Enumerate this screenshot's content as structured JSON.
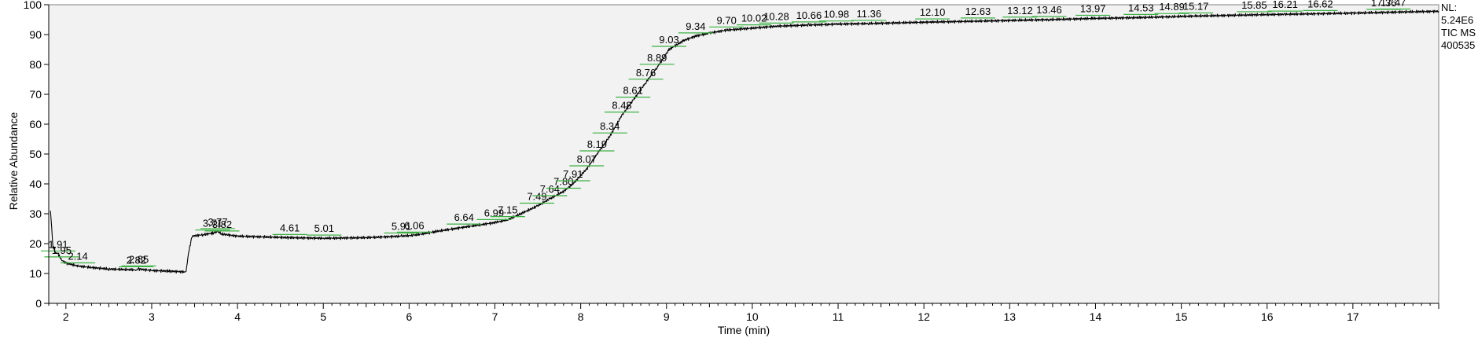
{
  "chart_data": {
    "type": "line",
    "title": "",
    "xlabel": "Time (min)",
    "ylabel": "Relative Abundance",
    "xlim": [
      1.8,
      18.0
    ],
    "ylim": [
      0,
      100
    ],
    "x_ticks": [
      2,
      3,
      4,
      5,
      6,
      7,
      8,
      9,
      10,
      11,
      12,
      13,
      14,
      15,
      16,
      17
    ],
    "x_tick_labels": [
      "2",
      "3",
      "4",
      "5",
      "6",
      "7",
      "8",
      "9",
      "10",
      "11",
      "12",
      "13",
      "14",
      "15",
      "16",
      "17"
    ],
    "y_ticks": [
      0,
      10,
      20,
      30,
      40,
      50,
      60,
      70,
      80,
      90,
      100
    ],
    "y_tick_labels": [
      "0",
      "10",
      "20",
      "30",
      "40",
      "50",
      "60",
      "70",
      "80",
      "90",
      "100"
    ],
    "grid": false,
    "side_labels": [
      "NL:",
      "5.24E6",
      "TIC  MS",
      "400535"
    ],
    "colors": {
      "plot_background": "#f2f2f2",
      "trace": "#000000",
      "peak_marker": "#3cb043"
    },
    "series": [
      {
        "x": [
          1.82,
          1.85,
          1.88,
          1.91,
          1.95,
          2.0,
          2.14,
          2.3,
          2.5,
          2.82,
          2.85,
          3.0,
          3.2,
          3.4,
          3.43,
          3.47,
          3.6,
          3.71,
          3.77,
          3.82,
          4.0,
          4.61,
          5.01,
          5.5,
          5.91,
          6.06,
          6.3,
          6.64,
          6.99,
          7.15,
          7.3,
          7.49,
          7.64,
          7.8,
          7.91,
          8.07,
          8.19,
          8.34,
          8.48,
          8.61,
          8.76,
          8.89,
          9.03,
          9.2,
          9.34,
          9.5,
          9.7,
          10.02,
          10.28,
          10.66,
          10.98,
          11.36,
          12.1,
          12.63,
          13.12,
          13.46,
          13.97,
          14.53,
          14.89,
          15.17,
          15.85,
          16.21,
          16.62,
          17.0,
          17.36,
          17.47,
          18.0
        ],
        "y": [
          31,
          19,
          17,
          16.5,
          14.5,
          13.5,
          12.5,
          12,
          11.5,
          11.2,
          11.5,
          11,
          10.8,
          10.5,
          17,
          22.5,
          23,
          23.5,
          24,
          23.2,
          22.5,
          22,
          21.8,
          22,
          22.5,
          22.8,
          24,
          25.5,
          27,
          28,
          30,
          32.5,
          35,
          37.5,
          40,
          45,
          50,
          56,
          63,
          68,
          74,
          79,
          85,
          88,
          89.5,
          90.5,
          91.5,
          92.2,
          92.8,
          93.2,
          93.5,
          93.7,
          94.2,
          94.5,
          94.8,
          95,
          95.4,
          95.7,
          96,
          96.2,
          96.6,
          96.8,
          97,
          97.2,
          97.4,
          97.5,
          97.8
        ]
      }
    ],
    "peak_labels": [
      {
        "x": 1.91,
        "y": 16.5,
        "label": "1.91"
      },
      {
        "x": 1.95,
        "y": 14.5,
        "label": "1.95"
      },
      {
        "x": 2.14,
        "y": 12.5,
        "label": "2.14"
      },
      {
        "x": 2.82,
        "y": 11.2,
        "label": "2.82"
      },
      {
        "x": 2.85,
        "y": 11.5,
        "label": "2.85"
      },
      {
        "x": 3.71,
        "y": 23.5,
        "label": "3.71"
      },
      {
        "x": 3.77,
        "y": 24,
        "label": "3.77"
      },
      {
        "x": 3.82,
        "y": 23.2,
        "label": "3.82"
      },
      {
        "x": 4.61,
        "y": 22,
        "label": "4.61"
      },
      {
        "x": 5.01,
        "y": 21.8,
        "label": "5.01"
      },
      {
        "x": 5.91,
        "y": 22.5,
        "label": "5.91"
      },
      {
        "x": 6.06,
        "y": 22.8,
        "label": "6.06"
      },
      {
        "x": 6.64,
        "y": 25.5,
        "label": "6.64"
      },
      {
        "x": 6.99,
        "y": 27,
        "label": "6.99"
      },
      {
        "x": 7.15,
        "y": 28,
        "label": "7.15"
      },
      {
        "x": 7.49,
        "y": 32.5,
        "label": "7.49"
      },
      {
        "x": 7.64,
        "y": 35,
        "label": "7.64"
      },
      {
        "x": 7.8,
        "y": 37.5,
        "label": "7.80"
      },
      {
        "x": 7.91,
        "y": 40,
        "label": "7.91"
      },
      {
        "x": 8.07,
        "y": 45,
        "label": "8.07"
      },
      {
        "x": 8.19,
        "y": 50,
        "label": "8.19"
      },
      {
        "x": 8.34,
        "y": 56,
        "label": "8.34"
      },
      {
        "x": 8.48,
        "y": 63,
        "label": "8.48"
      },
      {
        "x": 8.61,
        "y": 68,
        "label": "8.61"
      },
      {
        "x": 8.76,
        "y": 74,
        "label": "8.76"
      },
      {
        "x": 8.89,
        "y": 79,
        "label": "8.89"
      },
      {
        "x": 9.03,
        "y": 85,
        "label": "9.03"
      },
      {
        "x": 9.34,
        "y": 89.5,
        "label": "9.34"
      },
      {
        "x": 9.7,
        "y": 91.5,
        "label": "9.70"
      },
      {
        "x": 10.02,
        "y": 92.2,
        "label": "10.02"
      },
      {
        "x": 10.28,
        "y": 92.8,
        "label": "10.28"
      },
      {
        "x": 10.66,
        "y": 93.2,
        "label": "10.66"
      },
      {
        "x": 10.98,
        "y": 93.5,
        "label": "10.98"
      },
      {
        "x": 11.36,
        "y": 93.7,
        "label": "11.36"
      },
      {
        "x": 12.1,
        "y": 94.2,
        "label": "12.10"
      },
      {
        "x": 12.63,
        "y": 94.5,
        "label": "12.63"
      },
      {
        "x": 13.12,
        "y": 94.8,
        "label": "13.12"
      },
      {
        "x": 13.46,
        "y": 95,
        "label": "13.46"
      },
      {
        "x": 13.97,
        "y": 95.4,
        "label": "13.97"
      },
      {
        "x": 14.53,
        "y": 95.7,
        "label": "14.53"
      },
      {
        "x": 14.89,
        "y": 96,
        "label": "14.89"
      },
      {
        "x": 15.17,
        "y": 96.2,
        "label": "15.17"
      },
      {
        "x": 15.85,
        "y": 96.6,
        "label": "15.85"
      },
      {
        "x": 16.21,
        "y": 96.8,
        "label": "16.21"
      },
      {
        "x": 16.62,
        "y": 97,
        "label": "16.62"
      },
      {
        "x": 17.36,
        "y": 97.4,
        "label": "17.36"
      },
      {
        "x": 17.47,
        "y": 97.5,
        "label": "17.47"
      }
    ]
  }
}
